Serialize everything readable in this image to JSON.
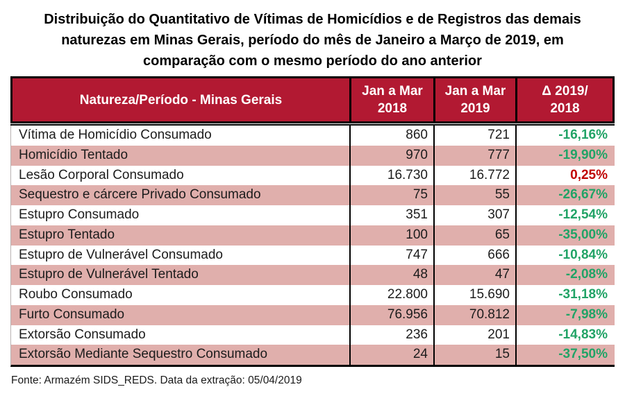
{
  "colors": {
    "header_bg": "#B21932",
    "header_text": "#FFFFFF",
    "row_bg": "#FFFFFF",
    "alt_row_bg": "#E0AFAC",
    "delta_negative_green": "#21A366",
    "delta_positive_red": "#C00000",
    "border_black": "#000000",
    "text": "#1C1C1C"
  },
  "title_lines": [
    "Distribuição do Quantitativo de Vítimas de Homicídios e de Registros das demais",
    "naturezas em Minas Gerais, período do mês de Janeiro a Março de 2019, em",
    "comparação com o mesmo período do ano anterior"
  ],
  "chart_data": {
    "type": "table",
    "title": "Distribuição do Quantitativo de Vítimas de Homicídios e de Registros das demais naturezas em Minas Gerais, período do mês de Janeiro a Março de 2019, em comparação com o mesmo período do ano anterior",
    "columns": [
      "Natureza/Período - Minas Gerais",
      "Jan a Mar\n2018",
      "Jan a Mar\n2019",
      "Δ 2019/\n2018"
    ],
    "rows": [
      {
        "natureza": "Vítima de Homicídio Consumado",
        "jan_mar_2018": "860",
        "jan_mar_2019": "721",
        "delta": "-16,16%",
        "delta_color": "green"
      },
      {
        "natureza": "Homicídio Tentado",
        "jan_mar_2018": "970",
        "jan_mar_2019": "777",
        "delta": "-19,90%",
        "delta_color": "green"
      },
      {
        "natureza": "Lesão Corporal Consumado",
        "jan_mar_2018": "16.730",
        "jan_mar_2019": "16.772",
        "delta": "0,25%",
        "delta_color": "red"
      },
      {
        "natureza": "Sequestro e cárcere Privado Consumado",
        "jan_mar_2018": "75",
        "jan_mar_2019": "55",
        "delta": "-26,67%",
        "delta_color": "green"
      },
      {
        "natureza": "Estupro Consumado",
        "jan_mar_2018": "351",
        "jan_mar_2019": "307",
        "delta": "-12,54%",
        "delta_color": "green"
      },
      {
        "natureza": "Estupro Tentado",
        "jan_mar_2018": "100",
        "jan_mar_2019": "65",
        "delta": "-35,00%",
        "delta_color": "green"
      },
      {
        "natureza": "Estupro de Vulnerável Consumado",
        "jan_mar_2018": "747",
        "jan_mar_2019": "666",
        "delta": "-10,84%",
        "delta_color": "green"
      },
      {
        "natureza": "Estupro de Vulnerável Tentado",
        "jan_mar_2018": "48",
        "jan_mar_2019": "47",
        "delta": "-2,08%",
        "delta_color": "green"
      },
      {
        "natureza": "Roubo Consumado",
        "jan_mar_2018": "22.800",
        "jan_mar_2019": "15.690",
        "delta": "-31,18%",
        "delta_color": "green"
      },
      {
        "natureza": "Furto Consumado",
        "jan_mar_2018": "76.956",
        "jan_mar_2019": "70.812",
        "delta": "-7,98%",
        "delta_color": "green"
      },
      {
        "natureza": "Extorsão Consumado",
        "jan_mar_2018": "236",
        "jan_mar_2019": "201",
        "delta": "-14,83%",
        "delta_color": "green"
      },
      {
        "natureza": "Extorsão Mediante Sequestro Consumado",
        "jan_mar_2018": "24",
        "jan_mar_2019": "15",
        "delta": "-37,50%",
        "delta_color": "green"
      }
    ],
    "footnote": "Fonte: Armazém SIDS_REDS. Data da extração: 05/04/2019"
  }
}
